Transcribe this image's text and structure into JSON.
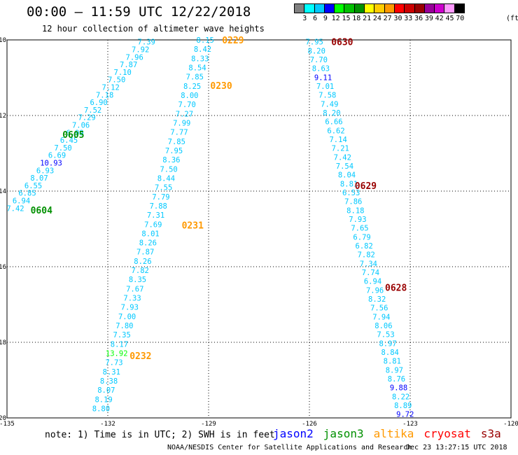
{
  "title": "00:00 – 11:59 UTC 12/22/2018",
  "subtitle": "12 hour collection of altimeter wave heights",
  "legend": {
    "unit": "(ft)",
    "labels": [
      "3",
      "6",
      "9",
      "12",
      "15",
      "18",
      "21",
      "24",
      "27",
      "30",
      "33",
      "36",
      "39",
      "42",
      "45",
      "70"
    ],
    "colors": [
      "#808080",
      "#00ffff",
      "#00c8ff",
      "#0000ff",
      "#00ff00",
      "#00c000",
      "#009000",
      "#ffff00",
      "#ffcc00",
      "#ff9900",
      "#ff0000",
      "#cc0000",
      "#990000",
      "#990099",
      "#cc00cc",
      "#ff99ff",
      "#000000"
    ]
  },
  "axes": {
    "lon_ticks": [
      "-135",
      "-132",
      "-129",
      "-126",
      "-123",
      "-120"
    ],
    "lat_ticks": [
      "-10",
      "-12",
      "-14",
      "-16",
      "-18",
      "-20"
    ]
  },
  "color_scale": {
    "light_blue": "#00c8ff",
    "dark_blue": "#0000ff",
    "light_green": "#00ff00",
    "green": "#009000",
    "orange": "#ff9900",
    "dark_red": "#990000"
  },
  "tracks": [
    {
      "name": "track-0604-0605",
      "color": "light_blue",
      "lon_start": -130.85,
      "lat_start": -10.05,
      "lon_end": -134.75,
      "lat_end": -14.45,
      "values": [
        "7.39",
        "7.92",
        "7.96",
        "7.87",
        "7.10",
        "7.50",
        "7.12",
        "7.18",
        "6.90",
        "7.52",
        "7.29",
        "7.06",
        "6.99",
        "6.45",
        "7.50",
        "6.69",
        "10.93",
        "6.93",
        "8.07",
        "6.55",
        "6.85",
        "6.94",
        "7.42"
      ],
      "highlight": {
        "16": "dark_blue"
      },
      "passes": [
        {
          "label": "0605",
          "color": "green",
          "lon": -133.35,
          "lat": -12.5
        },
        {
          "label": "0604",
          "color": "green",
          "lon": -134.3,
          "lat": -14.5
        }
      ]
    },
    {
      "name": "track-0229-0232",
      "color": "light_blue",
      "lon_start": -129.1,
      "lat_start": -10.0,
      "lon_end": -132.2,
      "lat_end": -19.75,
      "values": [
        "8.15",
        "8.42",
        "8.33",
        "8.54",
        "7.85",
        "8.25",
        "8.00",
        "7.70",
        "7.27",
        "7.99",
        "7.77",
        "7.85",
        "7.95",
        "8.36",
        "7.50",
        "8.44",
        "7.55",
        "7.79",
        "7.88",
        "7.31",
        "7.69",
        "8.01",
        "8.26",
        "7.87",
        "8.26",
        "7.82",
        "8.35",
        "7.67",
        "7.33",
        "7.93",
        "7.00",
        "7.80",
        "7.35",
        "8.17",
        "13.92",
        "7.73",
        "8.31",
        "8.38",
        "8.07",
        "8.19",
        "8.80"
      ],
      "highlight": {
        "34": "light_green"
      },
      "passes": [
        {
          "label": "0229",
          "color": "orange",
          "lon": -128.6,
          "lat": -10.0
        },
        {
          "label": "0230",
          "color": "orange",
          "lon": -128.95,
          "lat": -11.2
        },
        {
          "label": "0231",
          "color": "orange",
          "lon": -129.8,
          "lat": -14.9
        },
        {
          "label": "0232",
          "color": "orange",
          "lon": -131.35,
          "lat": -18.35
        }
      ]
    },
    {
      "name": "track-0628-0630",
      "color": "light_blue",
      "lon_start": -125.85,
      "lat_start": -10.05,
      "lon_end": -123.15,
      "lat_end": -19.9,
      "values": [
        "7.95",
        "8.20",
        "7.70",
        "8.63",
        "9.11",
        "7.01",
        "7.58",
        "7.49",
        "8.20",
        "6.66",
        "6.62",
        "7.14",
        "7.21",
        "7.42",
        "7.54",
        "8.04",
        "8.81",
        "6.53",
        "7.86",
        "8.18",
        "7.93",
        "7.65",
        "6.79",
        "6.82",
        "7.82",
        "7.34",
        "7.74",
        "6.94",
        "7.96",
        "8.32",
        "7.56",
        "7.94",
        "8.06",
        "7.53",
        "8.97",
        "8.84",
        "8.81",
        "8.97",
        "8.76",
        "9.88",
        "8.22",
        "8.89",
        "9.72"
      ],
      "highlight": {
        "4": "dark_blue",
        "39": "dark_blue",
        "42": "dark_blue"
      },
      "passes": [
        {
          "label": "0630",
          "color": "dark_red",
          "lon": -125.35,
          "lat": -10.05
        },
        {
          "label": "0629",
          "color": "dark_red",
          "lon": -124.65,
          "lat": -13.85
        },
        {
          "label": "0628",
          "color": "dark_red",
          "lon": -123.75,
          "lat": -16.55
        }
      ]
    }
  ],
  "note": "note: 1) Time is in UTC; 2) SWH is in feet",
  "satellites": [
    {
      "name": "jason2",
      "color": "#0000ff"
    },
    {
      "name": "jason3",
      "color": "#009000"
    },
    {
      "name": "altika",
      "color": "#ff9900"
    },
    {
      "name": "cryosat",
      "color": "#ff0000"
    },
    {
      "name": "s3a",
      "color": "#990000"
    }
  ],
  "credit": "NOAA/NESDIS Center for Satellite Applications and Research",
  "timestamp": "Dec 23 13:27:15 UTC 2018"
}
